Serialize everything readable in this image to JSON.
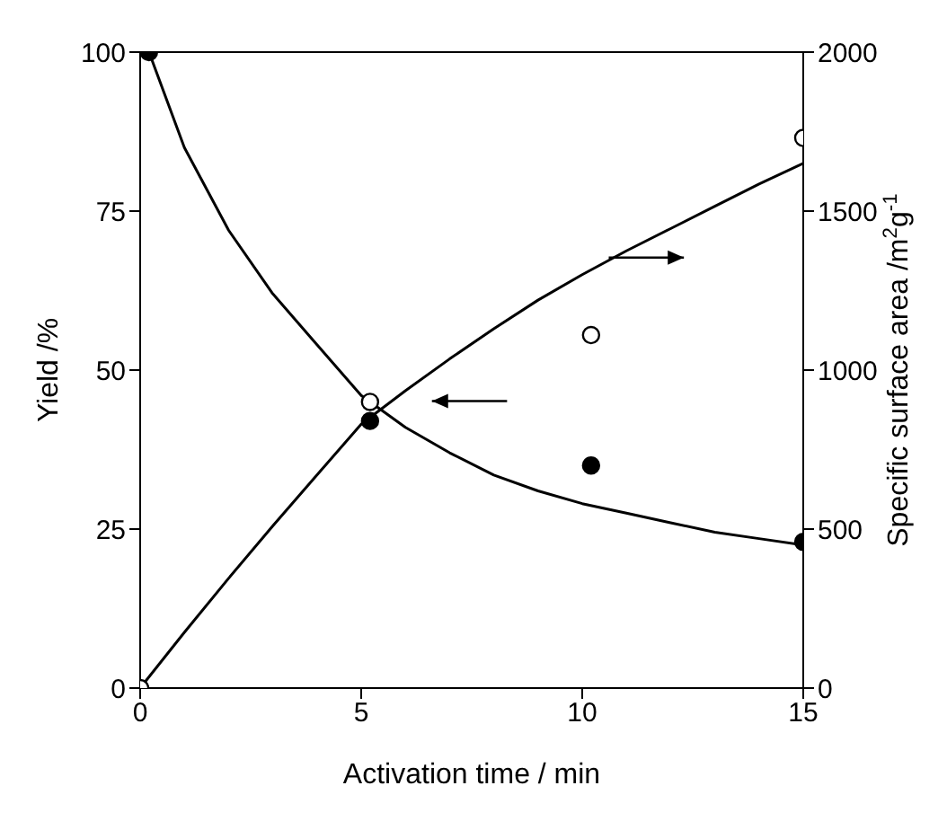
{
  "chart_data": {
    "type": "line",
    "xlabel": "Activation time / min",
    "ylabel": "Yield /%",
    "y2label": "Specific surface area /m$^{2}$g$^{-1}$",
    "xlim": [
      0,
      15
    ],
    "xticks": [
      0,
      5,
      10,
      15
    ],
    "ylim": [
      0,
      100
    ],
    "yticks": [
      0,
      25,
      50,
      75,
      100
    ],
    "y2lim": [
      0,
      2000
    ],
    "y2ticks": [
      0,
      500,
      1000,
      1500,
      2000
    ],
    "series": [
      {
        "axis": "y",
        "color": "#000000",
        "marker": "none",
        "line_style": "solid",
        "x": [
          0.2,
          1,
          2,
          3,
          4,
          5,
          6,
          7,
          8,
          9,
          10,
          11,
          12,
          13,
          14,
          15
        ],
        "values": [
          100,
          85,
          72,
          62,
          54,
          46,
          41,
          37,
          33.5,
          31,
          29,
          27.5,
          26,
          24.5,
          23.5,
          22.5
        ]
      },
      {
        "axis": "y2",
        "color": "#000000",
        "marker": "none",
        "line_style": "solid",
        "x": [
          0,
          1,
          2,
          3,
          4,
          5,
          6,
          7,
          8,
          9,
          10,
          11,
          12,
          13,
          14,
          15
        ],
        "values": [
          0,
          175,
          345,
          510,
          670,
          830,
          935,
          1035,
          1130,
          1220,
          1300,
          1375,
          1445,
          1515,
          1585,
          1650
        ]
      },
      {
        "type": "scatter",
        "axis": "y",
        "color": "#000000",
        "marker": "circle",
        "x": [
          0.2,
          5.2,
          10.2,
          15
        ],
        "values": [
          100,
          42,
          35,
          23
        ]
      },
      {
        "type": "scatter",
        "axis": "y2",
        "color": "#ffffff",
        "marker": "circle",
        "x": [
          0,
          5.2,
          10.2,
          15
        ],
        "values": [
          0,
          900,
          1110,
          1730
        ]
      }
    ]
  }
}
